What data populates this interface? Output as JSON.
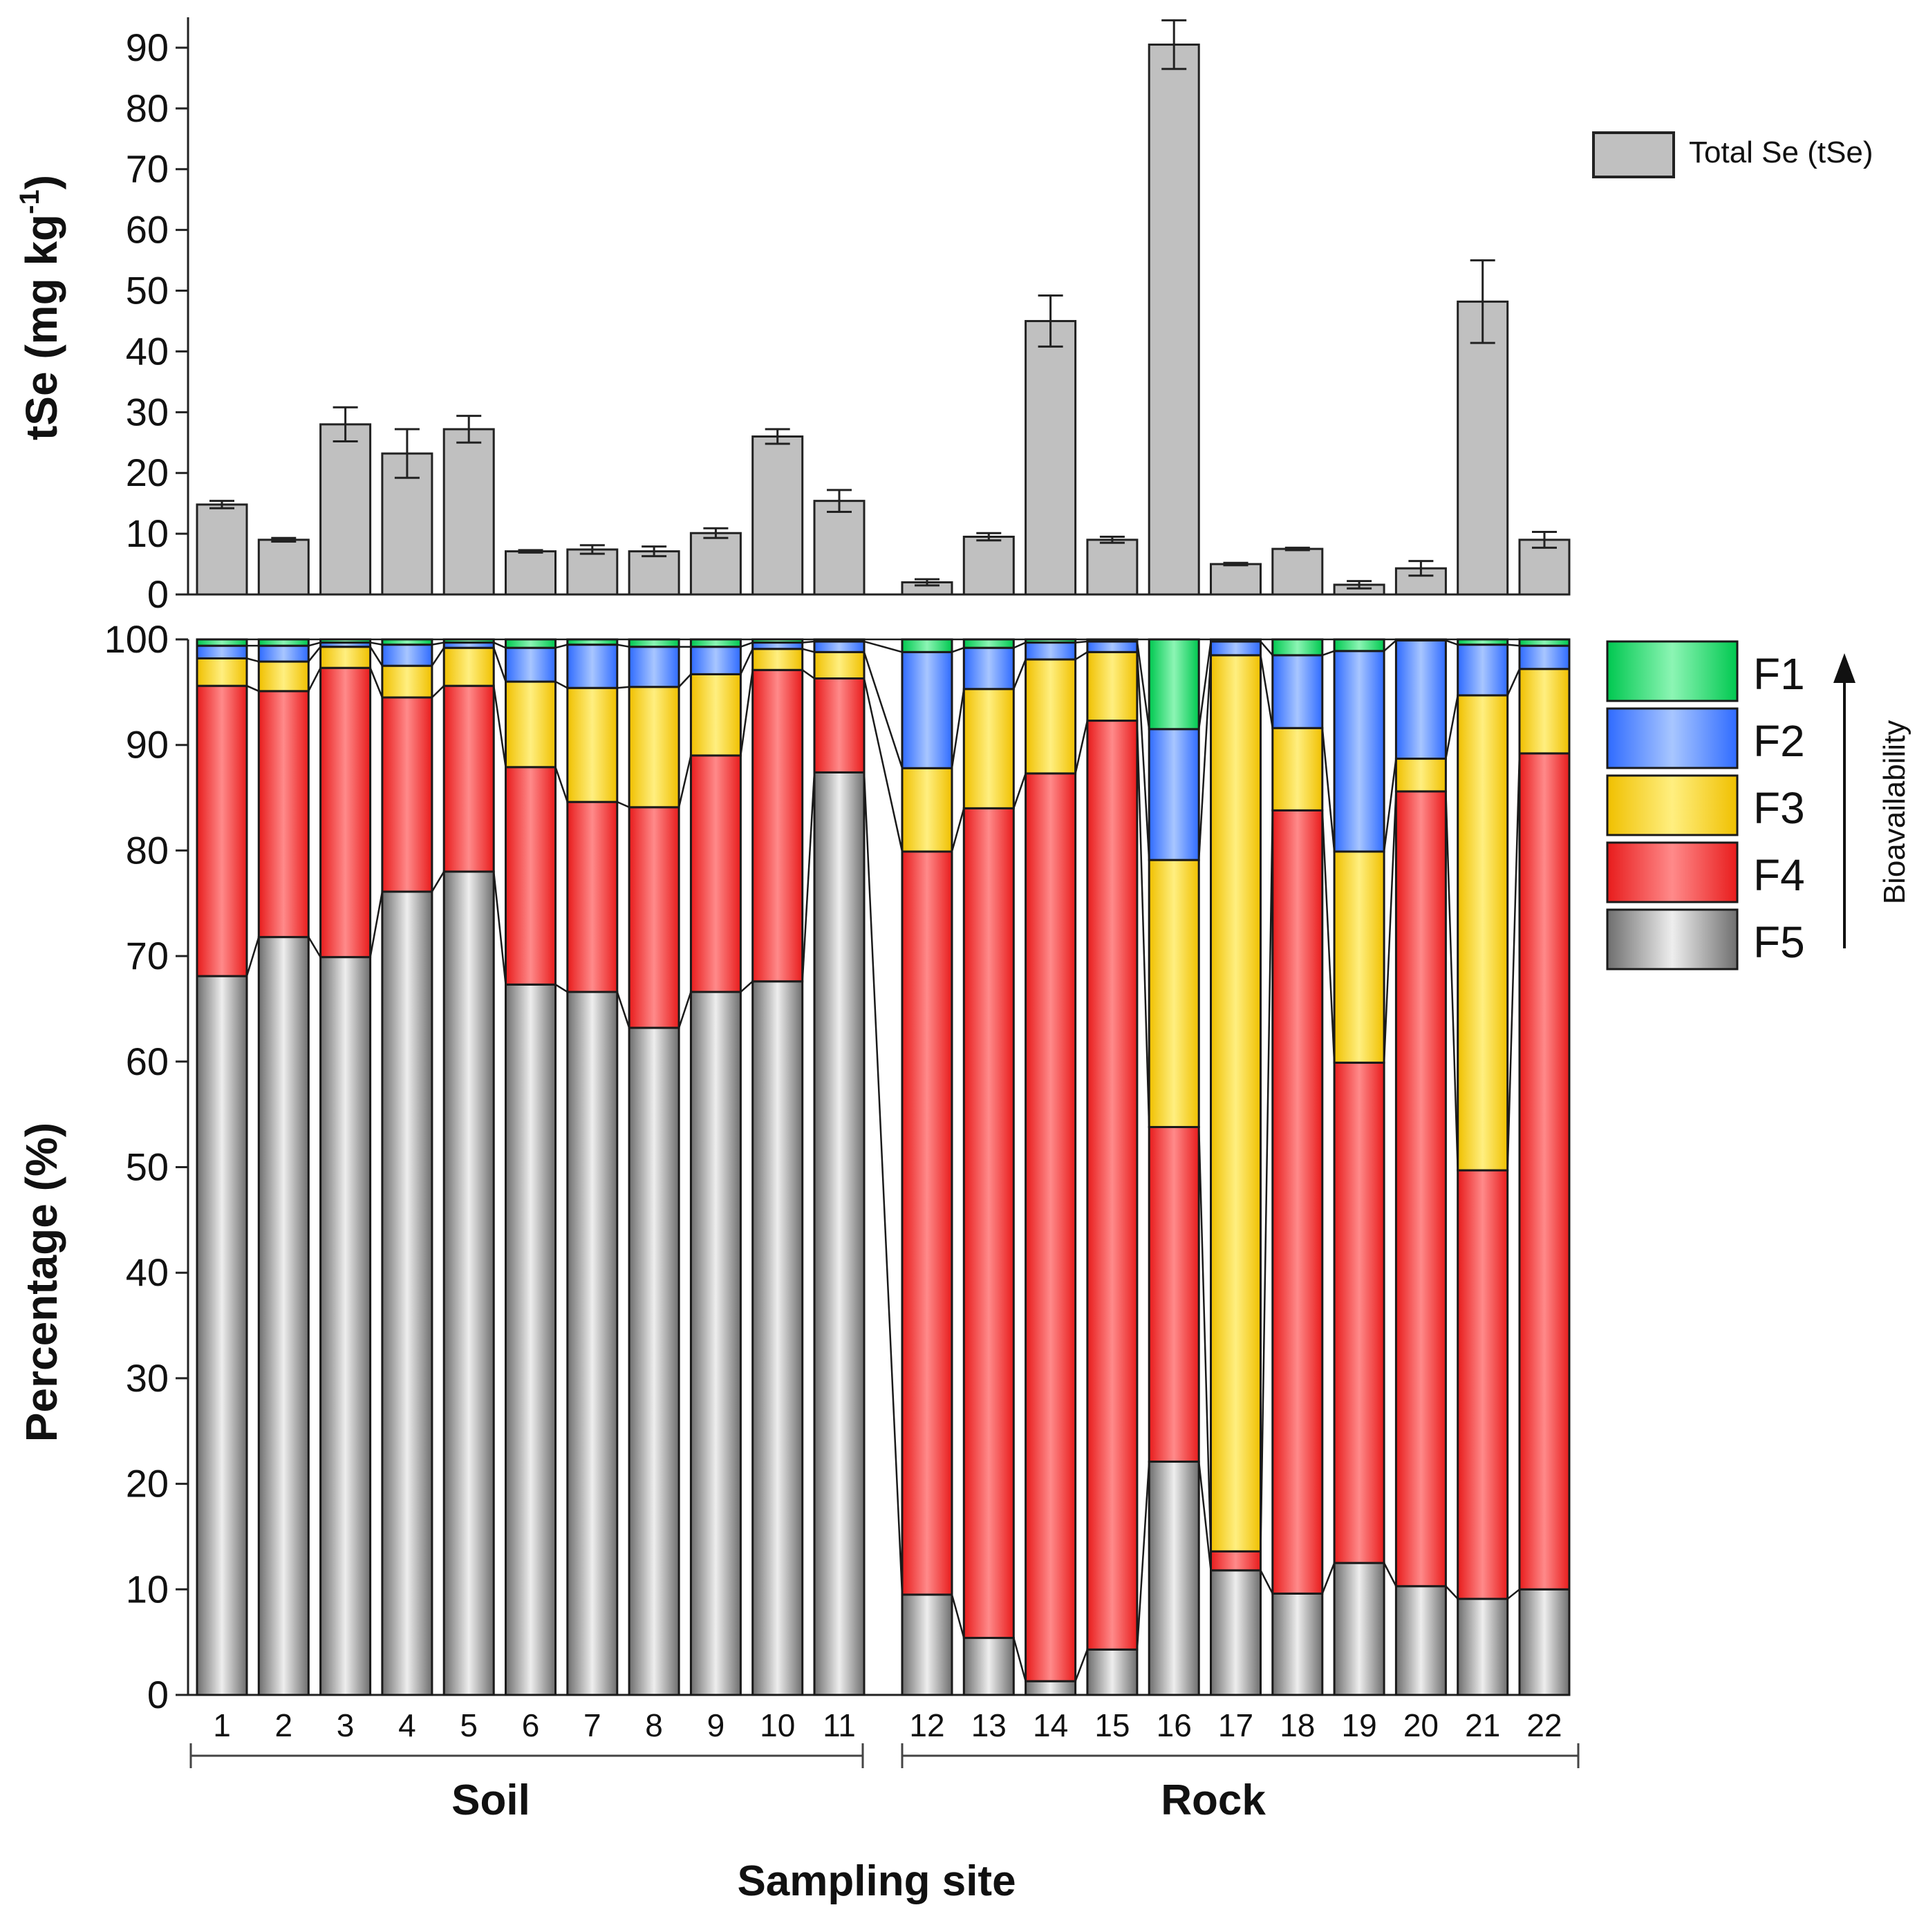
{
  "chart_data": [
    {
      "type": "bar",
      "title": "",
      "xlabel": "",
      "ylabel": "tSe (mg kg",
      "ylabel_superscript": "-1",
      "ylabel_close": ")",
      "ylim": [
        0,
        95
      ],
      "yticks": [
        0,
        10,
        20,
        30,
        40,
        50,
        60,
        70,
        80,
        90
      ],
      "categories": [
        "1",
        "2",
        "3",
        "4",
        "5",
        "6",
        "7",
        "8",
        "9",
        "10",
        "11",
        "12",
        "13",
        "14",
        "15",
        "16",
        "17",
        "18",
        "19",
        "20",
        "21",
        "22"
      ],
      "series": [
        {
          "name": "Total Se (tSe)",
          "color": "#c0c0c0",
          "values": [
            14.8,
            9.0,
            28.0,
            23.2,
            27.2,
            7.1,
            7.4,
            7.1,
            10.1,
            26.0,
            15.4,
            2.0,
            9.5,
            45.0,
            9.0,
            90.5,
            5.0,
            7.5,
            1.6,
            4.3,
            48.2,
            9.0
          ],
          "errors": [
            0.6,
            0.3,
            2.8,
            4.0,
            2.2,
            0.2,
            0.7,
            0.8,
            0.8,
            1.2,
            1.8,
            0.5,
            0.6,
            4.2,
            0.5,
            4.0,
            0.2,
            0.2,
            0.6,
            1.2,
            6.8,
            1.3
          ]
        }
      ],
      "legend": "top-right"
    },
    {
      "type": "bar",
      "stacked": true,
      "title": "",
      "xlabel": "Sampling site",
      "ylabel": "Percentage (%)",
      "ylim": [
        0,
        100
      ],
      "yticks": [
        0,
        10,
        20,
        30,
        40,
        50,
        60,
        70,
        80,
        90,
        100
      ],
      "categories": [
        "1",
        "2",
        "3",
        "4",
        "5",
        "6",
        "7",
        "8",
        "9",
        "10",
        "11",
        "12",
        "13",
        "14",
        "15",
        "16",
        "17",
        "18",
        "19",
        "20",
        "21",
        "22"
      ],
      "groups": [
        {
          "label": "Soil",
          "from": "1",
          "to": "11"
        },
        {
          "label": "Rock",
          "from": "12",
          "to": "22"
        }
      ],
      "series": [
        {
          "name": "F5",
          "color": "#b8b8b8",
          "values": [
            68.1,
            71.8,
            69.9,
            76.1,
            78.0,
            67.3,
            66.6,
            63.2,
            66.6,
            67.6,
            87.4,
            9.5,
            5.4,
            1.3,
            4.3,
            22.1,
            11.8,
            9.6,
            12.5,
            10.3,
            9.1,
            10.0
          ]
        },
        {
          "name": "F4",
          "color": "#ff4a4a",
          "values": [
            27.5,
            23.3,
            27.4,
            18.4,
            17.6,
            20.6,
            18.0,
            20.9,
            22.4,
            29.5,
            8.9,
            70.4,
            78.6,
            86.0,
            88.0,
            31.7,
            1.8,
            74.2,
            47.4,
            75.3,
            40.6,
            79.2
          ]
        },
        {
          "name": "F3",
          "color": "#ffd500",
          "values": [
            2.6,
            2.8,
            2.0,
            3.0,
            3.6,
            8.1,
            10.8,
            11.4,
            7.7,
            2.0,
            2.5,
            7.9,
            11.3,
            10.8,
            6.5,
            25.3,
            84.9,
            7.8,
            20.0,
            3.1,
            45.0,
            8.0
          ]
        },
        {
          "name": "F2",
          "color": "#6a9cff",
          "values": [
            1.2,
            1.5,
            0.4,
            2.0,
            0.5,
            3.2,
            4.1,
            3.8,
            2.6,
            0.6,
            1.0,
            11.0,
            3.9,
            1.6,
            1.0,
            12.4,
            1.3,
            6.9,
            19.0,
            11.2,
            4.8,
            2.2
          ]
        },
        {
          "name": "F1",
          "color": "#22e06a",
          "values": [
            0.6,
            0.6,
            0.3,
            0.5,
            0.3,
            0.8,
            0.5,
            0.7,
            0.7,
            0.3,
            0.2,
            1.2,
            0.8,
            0.3,
            0.2,
            8.5,
            0.2,
            1.5,
            1.1,
            0.1,
            0.5,
            0.6
          ]
        }
      ],
      "legend": "top-right",
      "legend_annotation": "Bioavailability"
    }
  ]
}
